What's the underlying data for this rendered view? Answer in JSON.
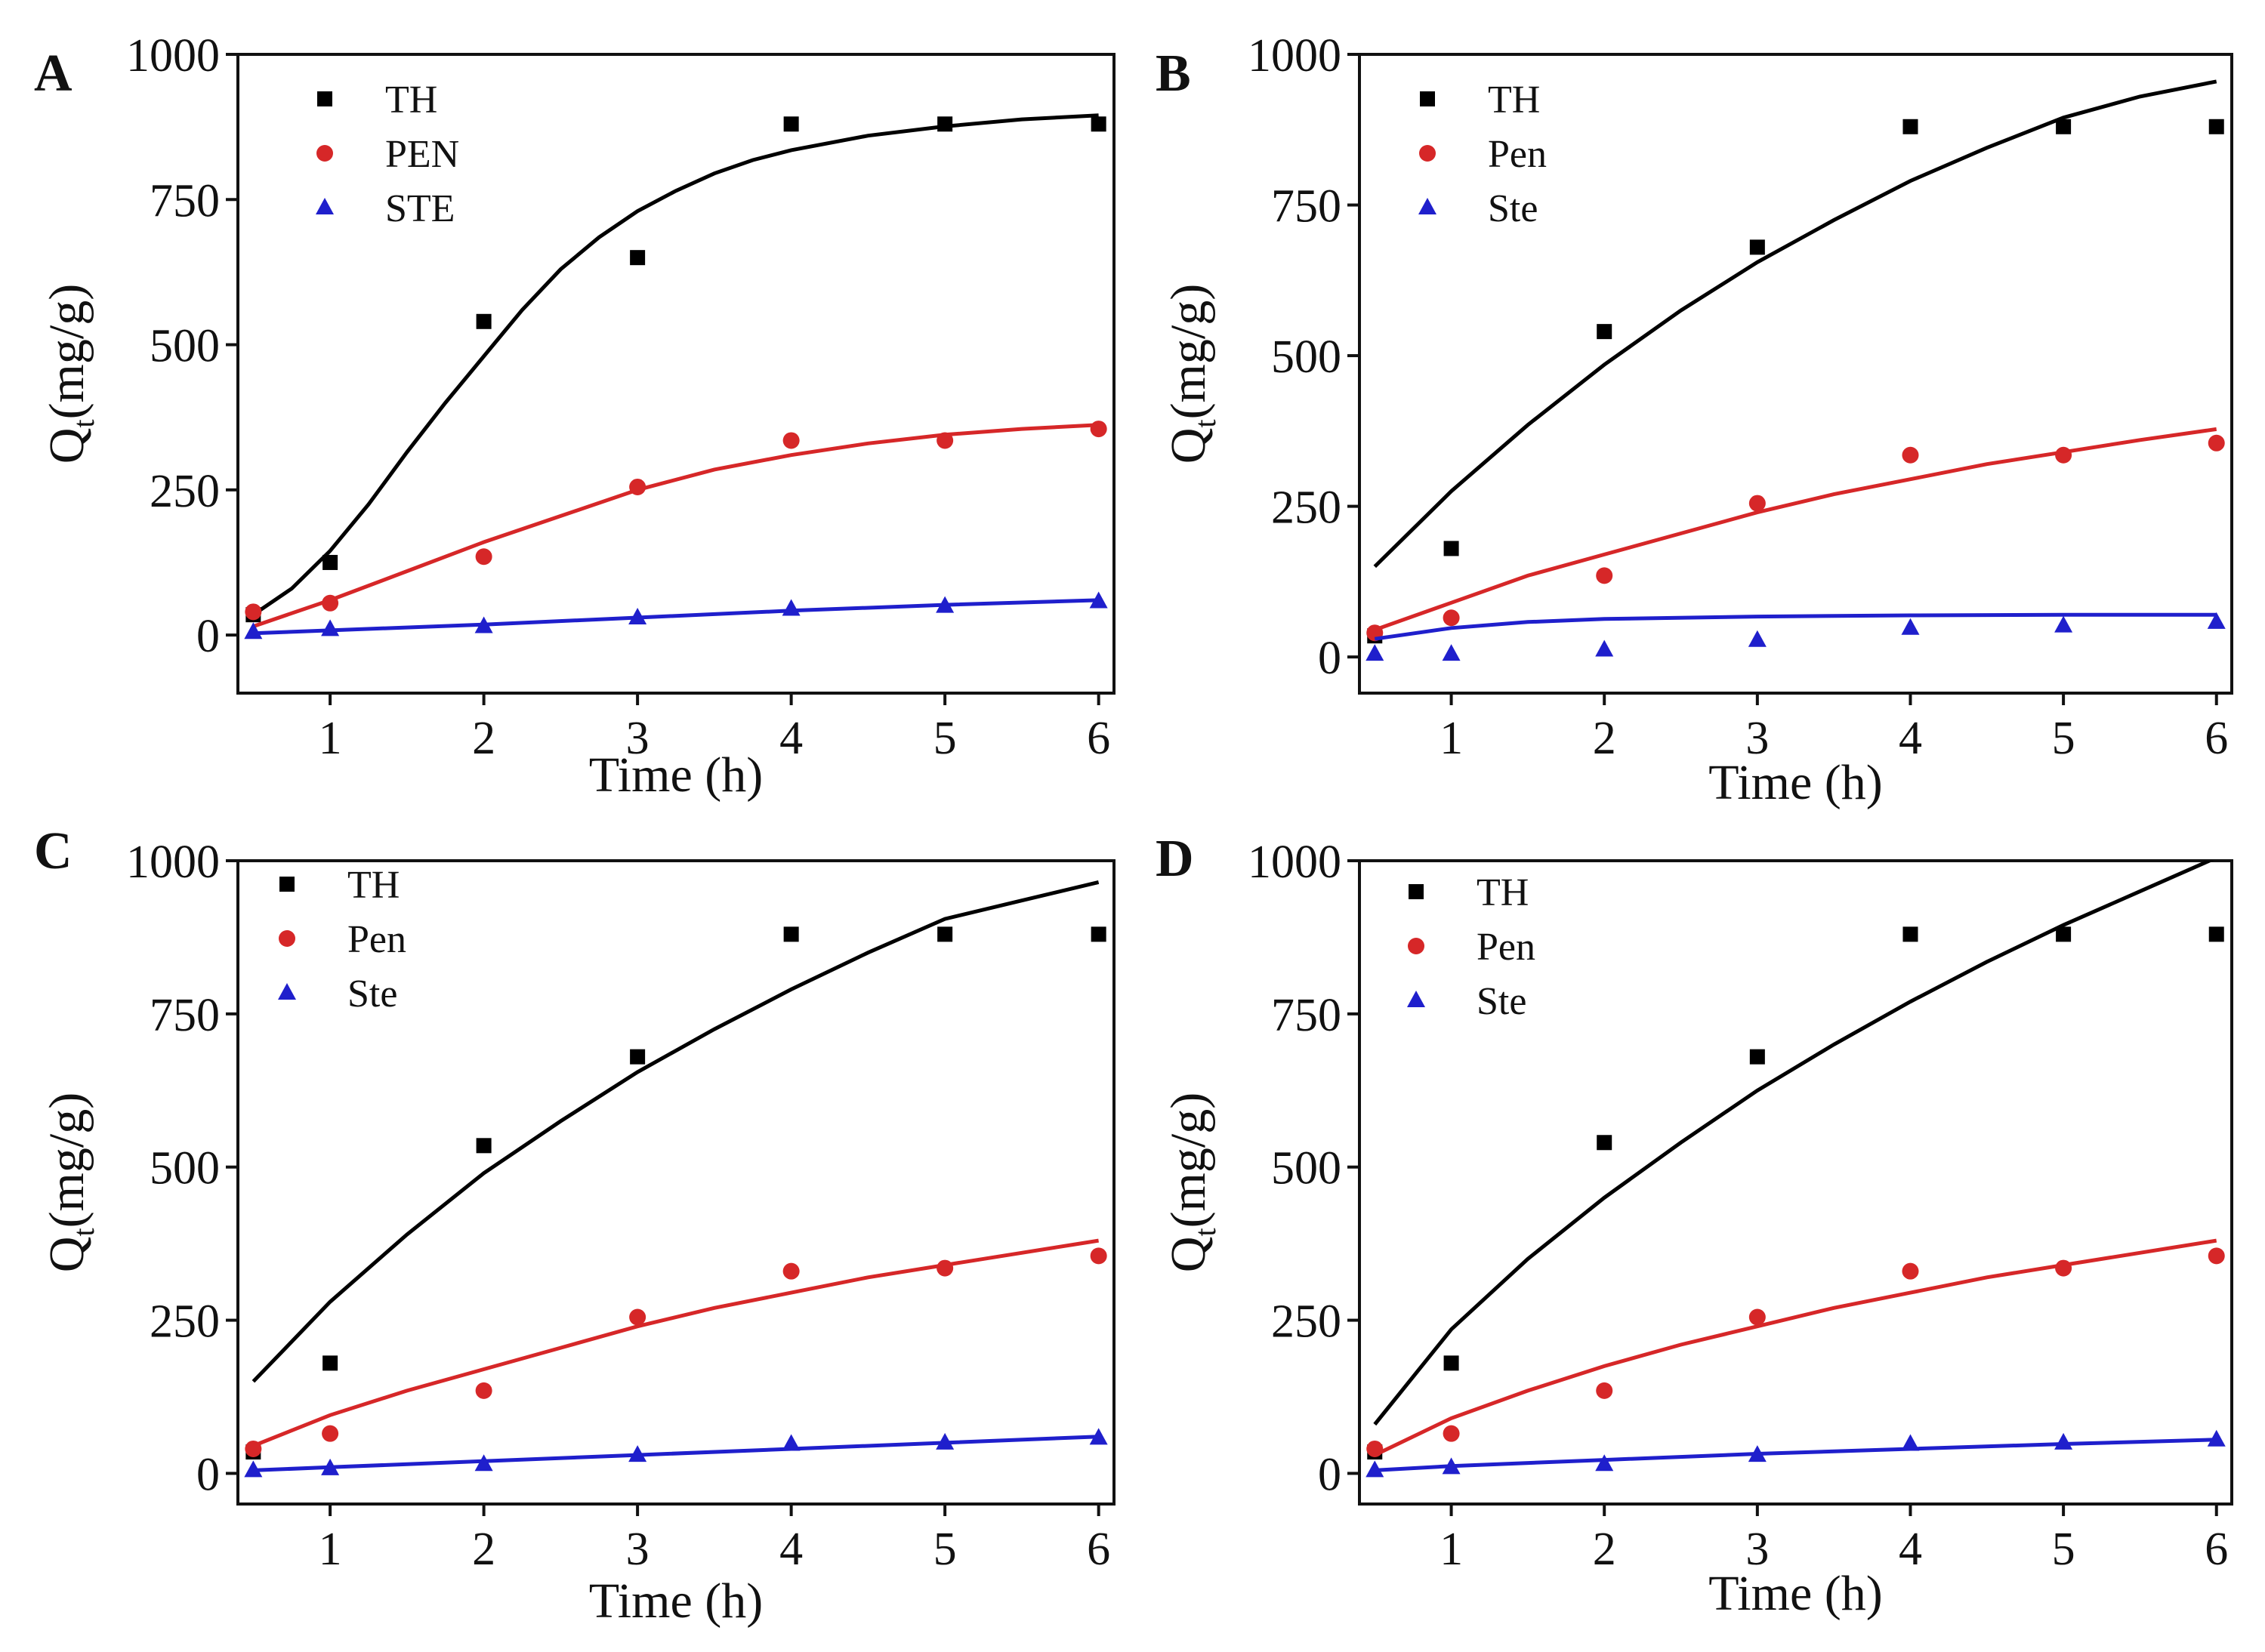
{
  "chart_data": [
    {
      "panel": "A",
      "type": "scatter",
      "xlabel": "Time (h)",
      "ylabel_main": "Q",
      "ylabel_sub": "t",
      "ylabel_unit": "(mg/g)",
      "xlim": [
        0.4,
        6.1
      ],
      "ylim": [
        -100,
        1000
      ],
      "xticks": [
        1,
        2,
        3,
        4,
        5,
        6
      ],
      "yticks": [
        0,
        250,
        500,
        750,
        1000
      ],
      "legend_position": "top-left",
      "x": [
        0.5,
        1,
        2,
        3,
        4,
        5,
        6
      ],
      "series": [
        {
          "name": "TH",
          "marker": "square",
          "color": "#000000",
          "values": [
            35,
            125,
            540,
            650,
            880,
            880,
            880
          ],
          "fit": {
            "x": [
              0.5,
              0.75,
              1,
              1.25,
              1.5,
              1.75,
              2,
              2.25,
              2.5,
              2.75,
              3,
              3.25,
              3.5,
              3.75,
              4,
              4.5,
              5,
              5.5,
              6
            ],
            "y": [
              35,
              80,
              145,
              225,
              315,
              400,
              480,
              560,
              630,
              685,
              730,
              765,
              795,
              818,
              835,
              860,
              876,
              888,
              895
            ]
          }
        },
        {
          "name": "PEN",
          "marker": "circle",
          "color": "#d62728",
          "values": [
            40,
            55,
            135,
            255,
            335,
            335,
            355
          ],
          "fit": {
            "x": [
              0.5,
              1,
              1.5,
              2,
              2.5,
              3,
              3.5,
              4,
              4.5,
              5,
              5.5,
              6
            ],
            "y": [
              15,
              60,
              110,
              160,
              205,
              250,
              285,
              310,
              330,
              345,
              355,
              362
            ]
          }
        },
        {
          "name": "STE",
          "marker": "triangle",
          "color": "#1f1fcc",
          "values": [
            5,
            10,
            15,
            30,
            45,
            50,
            58
          ],
          "fit": {
            "x": [
              0.5,
              1,
              2,
              3,
              4,
              5,
              6
            ],
            "y": [
              3,
              8,
              18,
              30,
              42,
              52,
              60
            ]
          }
        }
      ]
    },
    {
      "panel": "B",
      "type": "scatter",
      "xlabel": "Time (h)",
      "ylabel_main": "Q",
      "ylabel_sub": "t",
      "ylabel_unit": "(mg/g)",
      "xlim": [
        0.4,
        6.1
      ],
      "ylim": [
        -60,
        1000
      ],
      "xticks": [
        1,
        2,
        3,
        4,
        5,
        6
      ],
      "yticks": [
        0,
        250,
        500,
        750,
        1000
      ],
      "legend_position": "top-left",
      "x": [
        0.5,
        1,
        2,
        3,
        4,
        5,
        6
      ],
      "series": [
        {
          "name": "TH",
          "marker": "square",
          "color": "#000000",
          "values": [
            35,
            180,
            540,
            680,
            880,
            880,
            880
          ],
          "fit": {
            "x": [
              0.5,
              1,
              1.5,
              2,
              2.5,
              3,
              3.5,
              4,
              4.5,
              5,
              5.5,
              6
            ],
            "y": [
              150,
              275,
              385,
              485,
              575,
              655,
              725,
              790,
              845,
              895,
              930,
              955
            ]
          }
        },
        {
          "name": "Pen",
          "marker": "circle",
          "color": "#d62728",
          "values": [
            40,
            65,
            135,
            255,
            335,
            335,
            355
          ],
          "fit": {
            "x": [
              0.5,
              1,
              1.5,
              2,
              2.5,
              3,
              3.5,
              4,
              4.5,
              5,
              5.5,
              6
            ],
            "y": [
              45,
              90,
              135,
              170,
              205,
              240,
              270,
              295,
              320,
              340,
              360,
              378
            ]
          }
        },
        {
          "name": "Ste",
          "marker": "triangle",
          "color": "#1f1fcc",
          "values": [
            5,
            5,
            12,
            28,
            48,
            52,
            58
          ],
          "fit": {
            "x": [
              0.5,
              1,
              1.5,
              2,
              3,
              4,
              5,
              6
            ],
            "y": [
              30,
              48,
              58,
              63,
              67,
              69,
              70,
              70
            ]
          }
        }
      ]
    },
    {
      "panel": "C",
      "type": "scatter",
      "xlabel": "Time (h)",
      "ylabel_main": "Q",
      "ylabel_sub": "t",
      "ylabel_unit": "(mg/g)",
      "xlim": [
        0.4,
        6.1
      ],
      "ylim": [
        -50,
        1000
      ],
      "xticks": [
        1,
        2,
        3,
        4,
        5,
        6
      ],
      "yticks": [
        0,
        250,
        500,
        750,
        1000
      ],
      "legend_position": "top-left",
      "x": [
        0.5,
        1,
        2,
        3,
        4,
        5,
        6
      ],
      "series": [
        {
          "name": "TH",
          "marker": "square",
          "color": "#000000",
          "values": [
            35,
            180,
            535,
            680,
            880,
            880,
            880
          ],
          "fit": {
            "x": [
              0.5,
              1,
              1.5,
              2,
              2.5,
              3,
              3.5,
              4,
              4.5,
              5,
              5.5,
              6
            ],
            "y": [
              150,
              280,
              390,
              490,
              575,
              655,
              725,
              790,
              850,
              905,
              935,
              965
            ]
          }
        },
        {
          "name": "Pen",
          "marker": "circle",
          "color": "#d62728",
          "values": [
            40,
            65,
            135,
            255,
            330,
            335,
            355
          ],
          "fit": {
            "x": [
              0.5,
              1,
              1.5,
              2,
              2.5,
              3,
              3.5,
              4,
              4.5,
              5,
              5.5,
              6
            ],
            "y": [
              45,
              95,
              135,
              170,
              205,
              240,
              270,
              295,
              320,
              340,
              360,
              380
            ]
          }
        },
        {
          "name": "Ste",
          "marker": "triangle",
          "color": "#1f1fcc",
          "values": [
            5,
            8,
            15,
            30,
            48,
            50,
            58
          ],
          "fit": {
            "x": [
              0.5,
              1,
              2,
              3,
              4,
              5,
              6
            ],
            "y": [
              5,
              10,
              20,
              30,
              40,
              50,
              60
            ]
          }
        }
      ]
    },
    {
      "panel": "D",
      "type": "scatter",
      "xlabel": "Time (h)",
      "ylabel_main": "Q",
      "ylabel_sub": "t",
      "ylabel_unit": "(mg/g)",
      "xlim": [
        0.4,
        6.1
      ],
      "ylim": [
        -50,
        1000
      ],
      "xticks": [
        1,
        2,
        3,
        4,
        5,
        6
      ],
      "yticks": [
        0,
        250,
        500,
        750,
        1000
      ],
      "legend_position": "top-left",
      "x": [
        0.5,
        1,
        2,
        3,
        4,
        5,
        6
      ],
      "series": [
        {
          "name": "TH",
          "marker": "square",
          "color": "#000000",
          "values": [
            35,
            180,
            540,
            680,
            880,
            880,
            880
          ],
          "fit": {
            "x": [
              0.5,
              1,
              1.5,
              2,
              2.5,
              3,
              3.5,
              4,
              4.5,
              5,
              5.5,
              6
            ],
            "y": [
              80,
              235,
              350,
              450,
              540,
              625,
              700,
              770,
              835,
              895,
              950,
              1005
            ]
          }
        },
        {
          "name": "Pen",
          "marker": "circle",
          "color": "#d62728",
          "values": [
            40,
            65,
            135,
            255,
            330,
            335,
            355
          ],
          "fit": {
            "x": [
              0.5,
              1,
              1.5,
              2,
              2.5,
              3,
              3.5,
              4,
              4.5,
              5,
              5.5,
              6
            ],
            "y": [
              30,
              90,
              135,
              175,
              210,
              240,
              270,
              295,
              320,
              340,
              360,
              380
            ]
          }
        },
        {
          "name": "Ste",
          "marker": "triangle",
          "color": "#1f1fcc",
          "values": [
            5,
            10,
            15,
            30,
            48,
            50,
            55
          ],
          "fit": {
            "x": [
              0.5,
              1,
              2,
              3,
              4,
              5,
              6
            ],
            "y": [
              5,
              12,
              22,
              32,
              40,
              48,
              55
            ]
          }
        }
      ]
    }
  ]
}
